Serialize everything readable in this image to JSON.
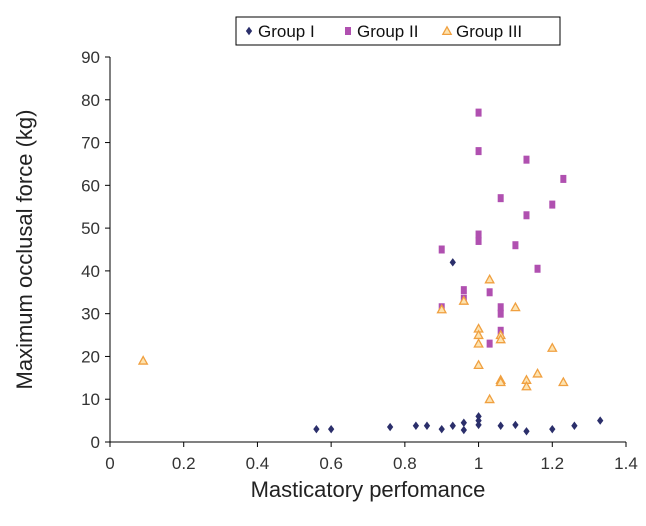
{
  "chart_data": {
    "type": "scatter",
    "title": "",
    "xlabel": "Masticatory perfomance",
    "ylabel": "Maximum occlusal force (kg)",
    "xlim": [
      0,
      1.4
    ],
    "ylim": [
      0,
      90
    ],
    "xticks": [
      "0",
      "0.2",
      "0.4",
      "0.6",
      "0.8",
      "1",
      "1.2",
      "1.4"
    ],
    "yticks": [
      "0",
      "10",
      "20",
      "30",
      "40",
      "50",
      "60",
      "70",
      "80",
      "90"
    ],
    "legend_position": "top",
    "grid": false,
    "series": [
      {
        "name": "Group I",
        "marker": "diamond",
        "color": "#2b2f6b",
        "points": [
          [
            0.56,
            3.0
          ],
          [
            0.6,
            3.0
          ],
          [
            0.76,
            3.5
          ],
          [
            0.83,
            3.8
          ],
          [
            0.86,
            3.8
          ],
          [
            0.9,
            3.0
          ],
          [
            0.93,
            3.8
          ],
          [
            0.93,
            42.0
          ],
          [
            0.96,
            4.5
          ],
          [
            0.96,
            2.8
          ],
          [
            1.0,
            4.0
          ],
          [
            1.0,
            5.0
          ],
          [
            1.0,
            6.0
          ],
          [
            1.06,
            3.8
          ],
          [
            1.1,
            4.0
          ],
          [
            1.13,
            2.5
          ],
          [
            1.2,
            3.0
          ],
          [
            1.26,
            3.8
          ],
          [
            1.33,
            5.0
          ]
        ]
      },
      {
        "name": "Group II",
        "marker": "square",
        "color": "#b050b0",
        "points": [
          [
            0.9,
            45.0
          ],
          [
            0.9,
            31.5
          ],
          [
            0.96,
            35.5
          ],
          [
            0.96,
            33.5
          ],
          [
            1.0,
            77.0
          ],
          [
            1.0,
            68.0
          ],
          [
            1.0,
            48.5
          ],
          [
            1.0,
            47.0
          ],
          [
            1.03,
            35.0
          ],
          [
            1.03,
            23.0
          ],
          [
            1.06,
            57.0
          ],
          [
            1.06,
            31.5
          ],
          [
            1.06,
            30.0
          ],
          [
            1.06,
            26.0
          ],
          [
            1.1,
            46.0
          ],
          [
            1.13,
            66.0
          ],
          [
            1.13,
            53.0
          ],
          [
            1.16,
            40.5
          ],
          [
            1.2,
            55.5
          ],
          [
            1.23,
            61.5
          ]
        ]
      },
      {
        "name": "Group III",
        "marker": "triangle",
        "color": "#f0a040",
        "points": [
          [
            0.09,
            19.0
          ],
          [
            0.9,
            31.0
          ],
          [
            0.96,
            33.0
          ],
          [
            1.0,
            26.5
          ],
          [
            1.0,
            25.0
          ],
          [
            1.0,
            23.0
          ],
          [
            1.0,
            18.0
          ],
          [
            1.03,
            38.0
          ],
          [
            1.03,
            10.0
          ],
          [
            1.06,
            25.0
          ],
          [
            1.06,
            24.0
          ],
          [
            1.06,
            14.5
          ],
          [
            1.06,
            14.0
          ],
          [
            1.1,
            31.5
          ],
          [
            1.13,
            14.5
          ],
          [
            1.13,
            13.0
          ],
          [
            1.16,
            16.0
          ],
          [
            1.2,
            22.0
          ],
          [
            1.23,
            14.0
          ]
        ]
      }
    ]
  }
}
